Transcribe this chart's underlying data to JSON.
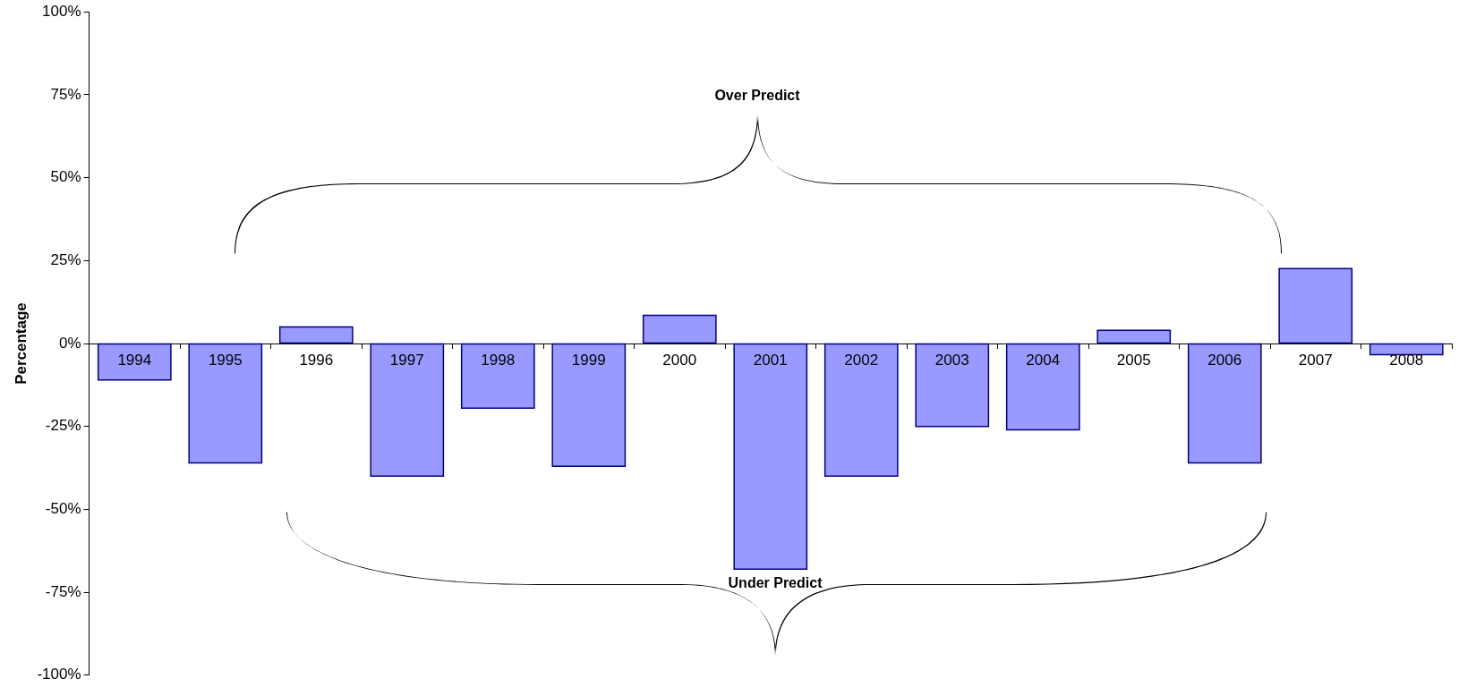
{
  "chart_data": {
    "type": "bar",
    "ylabel": "Percentage",
    "categories": [
      "1994",
      "1995",
      "1996",
      "1997",
      "1998",
      "1999",
      "2000",
      "2001",
      "2002",
      "2003",
      "2004",
      "2005",
      "2006",
      "2007",
      "2008"
    ],
    "values": [
      -11,
      -36,
      5,
      -40,
      -19.5,
      -37,
      8.5,
      -68,
      -40,
      -25,
      -26,
      4,
      -36,
      22.6,
      -3.4
    ],
    "color": "#9999ff",
    "ylim": [
      -100,
      100
    ],
    "yticks": [
      {
        "value": -100,
        "label": "-100%"
      },
      {
        "value": -75,
        "label": "-75%"
      },
      {
        "value": -50,
        "label": "-50%"
      },
      {
        "value": -25,
        "label": "-25%"
      },
      {
        "value": 0,
        "label": "0%"
      },
      {
        "value": 25,
        "label": "25%"
      },
      {
        "value": 50,
        "label": "50%"
      },
      {
        "value": 75,
        "label": "75%"
      },
      {
        "value": 100,
        "label": "100%"
      }
    ],
    "grid": false,
    "legend": false,
    "annotations": [
      "Over Predict",
      "Under Predict"
    ]
  }
}
